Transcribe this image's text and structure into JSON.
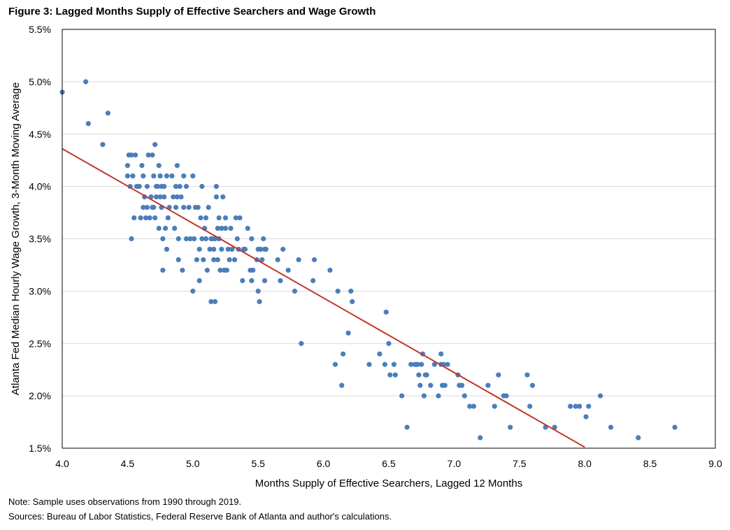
{
  "figure": {
    "title": "Figure 3: Lagged Months Supply of Effective Searchers and Wage Growth",
    "note": "Note: Sample uses observations from 1990 through 2019.",
    "sources": "Sources: Bureau of Labor Statistics, Federal Reserve Bank of Atlanta and author's calculations."
  },
  "colors": {
    "points": "#4a7ebb",
    "trendline": "#c0392b",
    "grid": "#d9d9d9",
    "plot_border": "#000000"
  },
  "chart_data": {
    "type": "scatter",
    "title": "Figure 3: Lagged Months Supply of Effective Searchers and Wage Growth",
    "xlabel": "Months Supply of Effective Searchers, Lagged 12 Months",
    "ylabel": "Atlanta Fed Median Hourly Wage Growth, 3-Month Moving Average",
    "xlim": [
      4.0,
      9.0
    ],
    "ylim": [
      1.5,
      5.5
    ],
    "xticks": [
      "4.0",
      "4.5",
      "5.0",
      "5.5",
      "6.0",
      "6.5",
      "7.0",
      "7.5",
      "8.0",
      "8.5",
      "9.0"
    ],
    "xtick_values": [
      4.0,
      4.5,
      5.0,
      5.5,
      6.0,
      6.5,
      7.0,
      7.5,
      8.0,
      8.5,
      9.0
    ],
    "yticks": [
      "1.5%",
      "2.0%",
      "2.5%",
      "3.0%",
      "3.5%",
      "4.0%",
      "4.5%",
      "5.0%",
      "5.5%"
    ],
    "ytick_values": [
      1.5,
      2.0,
      2.5,
      3.0,
      3.5,
      4.0,
      4.5,
      5.0,
      5.5
    ],
    "grid": "horizontal",
    "trendline": {
      "x": [
        4.0,
        8.0
      ],
      "y": [
        4.36,
        1.51
      ]
    },
    "points": [
      [
        4.0,
        4.9
      ],
      [
        4.18,
        5.0
      ],
      [
        4.2,
        4.6
      ],
      [
        4.31,
        4.4
      ],
      [
        4.35,
        4.7
      ],
      [
        4.5,
        4.2
      ],
      [
        4.5,
        4.1
      ],
      [
        4.51,
        4.3
      ],
      [
        4.52,
        4.0
      ],
      [
        4.53,
        3.5
      ],
      [
        4.53,
        4.3
      ],
      [
        4.54,
        4.1
      ],
      [
        4.55,
        3.7
      ],
      [
        4.56,
        4.3
      ],
      [
        4.57,
        4.0
      ],
      [
        4.59,
        4.0
      ],
      [
        4.6,
        3.7
      ],
      [
        4.61,
        4.2
      ],
      [
        4.62,
        3.8
      ],
      [
        4.62,
        4.1
      ],
      [
        4.63,
        3.9
      ],
      [
        4.64,
        3.7
      ],
      [
        4.65,
        4.0
      ],
      [
        4.65,
        3.8
      ],
      [
        4.66,
        4.3
      ],
      [
        4.67,
        3.7
      ],
      [
        4.68,
        3.9
      ],
      [
        4.69,
        4.3
      ],
      [
        4.69,
        3.8
      ],
      [
        4.7,
        4.1
      ],
      [
        4.7,
        3.8
      ],
      [
        4.71,
        4.4
      ],
      [
        4.71,
        3.7
      ],
      [
        4.72,
        4.0
      ],
      [
        4.72,
        3.9
      ],
      [
        4.73,
        4.0
      ],
      [
        4.74,
        4.2
      ],
      [
        4.74,
        3.6
      ],
      [
        4.75,
        4.1
      ],
      [
        4.75,
        3.9
      ],
      [
        4.76,
        4.0
      ],
      [
        4.76,
        3.8
      ],
      [
        4.77,
        3.5
      ],
      [
        4.77,
        3.2
      ],
      [
        4.78,
        4.0
      ],
      [
        4.78,
        3.9
      ],
      [
        4.79,
        3.6
      ],
      [
        4.8,
        3.4
      ],
      [
        4.8,
        4.1
      ],
      [
        4.81,
        3.7
      ],
      [
        4.82,
        3.8
      ],
      [
        4.84,
        4.1
      ],
      [
        4.85,
        3.9
      ],
      [
        4.86,
        3.6
      ],
      [
        4.87,
        4.0
      ],
      [
        4.87,
        3.8
      ],
      [
        4.88,
        4.2
      ],
      [
        4.88,
        3.9
      ],
      [
        4.89,
        3.3
      ],
      [
        4.89,
        3.5
      ],
      [
        4.9,
        4.0
      ],
      [
        4.91,
        3.9
      ],
      [
        4.92,
        3.2
      ],
      [
        4.93,
        4.1
      ],
      [
        4.93,
        3.8
      ],
      [
        4.95,
        4.0
      ],
      [
        4.95,
        3.5
      ],
      [
        4.97,
        3.8
      ],
      [
        4.98,
        3.5
      ],
      [
        5.0,
        4.1
      ],
      [
        5.0,
        3.0
      ],
      [
        5.01,
        3.5
      ],
      [
        5.02,
        3.8
      ],
      [
        5.03,
        3.3
      ],
      [
        5.04,
        3.8
      ],
      [
        5.05,
        3.4
      ],
      [
        5.05,
        3.1
      ],
      [
        5.06,
        3.7
      ],
      [
        5.07,
        3.5
      ],
      [
        5.07,
        4.0
      ],
      [
        5.08,
        3.3
      ],
      [
        5.09,
        3.6
      ],
      [
        5.1,
        3.5
      ],
      [
        5.1,
        3.7
      ],
      [
        5.11,
        3.2
      ],
      [
        5.12,
        3.8
      ],
      [
        5.13,
        3.4
      ],
      [
        5.14,
        3.5
      ],
      [
        5.14,
        2.9
      ],
      [
        5.15,
        3.5
      ],
      [
        5.16,
        3.3
      ],
      [
        5.16,
        3.4
      ],
      [
        5.17,
        3.5
      ],
      [
        5.17,
        2.9
      ],
      [
        5.18,
        4.0
      ],
      [
        5.18,
        3.9
      ],
      [
        5.19,
        3.6
      ],
      [
        5.19,
        3.3
      ],
      [
        5.2,
        3.7
      ],
      [
        5.2,
        3.5
      ],
      [
        5.21,
        3.2
      ],
      [
        5.22,
        3.4
      ],
      [
        5.22,
        3.6
      ],
      [
        5.23,
        3.9
      ],
      [
        5.24,
        3.2
      ],
      [
        5.25,
        3.6
      ],
      [
        5.25,
        3.7
      ],
      [
        5.26,
        3.2
      ],
      [
        5.27,
        3.4
      ],
      [
        5.28,
        3.3
      ],
      [
        5.29,
        3.6
      ],
      [
        5.3,
        3.4
      ],
      [
        5.32,
        3.3
      ],
      [
        5.33,
        3.7
      ],
      [
        5.34,
        3.5
      ],
      [
        5.35,
        3.4
      ],
      [
        5.36,
        3.7
      ],
      [
        5.38,
        3.1
      ],
      [
        5.39,
        3.4
      ],
      [
        5.4,
        3.4
      ],
      [
        5.42,
        3.6
      ],
      [
        5.44,
        3.2
      ],
      [
        5.45,
        3.5
      ],
      [
        5.45,
        3.1
      ],
      [
        5.46,
        3.2
      ],
      [
        5.49,
        3.3
      ],
      [
        5.5,
        3.4
      ],
      [
        5.5,
        3.0
      ],
      [
        5.51,
        2.9
      ],
      [
        5.52,
        3.4
      ],
      [
        5.53,
        3.3
      ],
      [
        5.54,
        3.5
      ],
      [
        5.55,
        3.4
      ],
      [
        5.55,
        3.1
      ],
      [
        5.56,
        3.4
      ],
      [
        5.65,
        3.3
      ],
      [
        5.67,
        3.1
      ],
      [
        5.69,
        3.4
      ],
      [
        5.73,
        3.2
      ],
      [
        5.78,
        3.0
      ],
      [
        5.81,
        3.3
      ],
      [
        5.83,
        2.5
      ],
      [
        5.92,
        3.1
      ],
      [
        5.93,
        3.3
      ],
      [
        6.05,
        3.2
      ],
      [
        6.09,
        2.3
      ],
      [
        6.11,
        3.0
      ],
      [
        6.14,
        2.1
      ],
      [
        6.15,
        2.4
      ],
      [
        6.19,
        2.6
      ],
      [
        6.21,
        3.0
      ],
      [
        6.22,
        2.9
      ],
      [
        6.35,
        2.3
      ],
      [
        6.43,
        2.4
      ],
      [
        6.47,
        2.3
      ],
      [
        6.48,
        2.8
      ],
      [
        6.5,
        2.5
      ],
      [
        6.51,
        2.2
      ],
      [
        6.54,
        2.3
      ],
      [
        6.55,
        2.2
      ],
      [
        6.6,
        2.0
      ],
      [
        6.64,
        1.7
      ],
      [
        6.67,
        2.3
      ],
      [
        6.7,
        2.3
      ],
      [
        6.71,
        2.3
      ],
      [
        6.72,
        2.3
      ],
      [
        6.73,
        2.2
      ],
      [
        6.74,
        2.1
      ],
      [
        6.75,
        2.3
      ],
      [
        6.76,
        2.4
      ],
      [
        6.77,
        2.0
      ],
      [
        6.78,
        2.2
      ],
      [
        6.79,
        2.2
      ],
      [
        6.82,
        2.1
      ],
      [
        6.85,
        2.3
      ],
      [
        6.88,
        2.0
      ],
      [
        6.9,
        2.3
      ],
      [
        6.9,
        2.4
      ],
      [
        6.91,
        2.1
      ],
      [
        6.92,
        2.3
      ],
      [
        6.93,
        2.1
      ],
      [
        6.95,
        2.3
      ],
      [
        7.03,
        2.2
      ],
      [
        7.04,
        2.1
      ],
      [
        7.06,
        2.1
      ],
      [
        7.08,
        2.0
      ],
      [
        7.12,
        1.9
      ],
      [
        7.15,
        1.9
      ],
      [
        7.2,
        1.6
      ],
      [
        7.26,
        2.1
      ],
      [
        7.31,
        1.9
      ],
      [
        7.34,
        2.2
      ],
      [
        7.38,
        2.0
      ],
      [
        7.4,
        2.0
      ],
      [
        7.43,
        1.7
      ],
      [
        7.56,
        2.2
      ],
      [
        7.58,
        1.9
      ],
      [
        7.6,
        2.1
      ],
      [
        7.7,
        1.7
      ],
      [
        7.77,
        1.7
      ],
      [
        7.89,
        1.9
      ],
      [
        7.93,
        1.9
      ],
      [
        7.96,
        1.9
      ],
      [
        8.01,
        1.8
      ],
      [
        8.03,
        1.9
      ],
      [
        8.12,
        2.0
      ],
      [
        8.2,
        1.7
      ],
      [
        8.41,
        1.6
      ],
      [
        8.69,
        1.7
      ]
    ]
  }
}
